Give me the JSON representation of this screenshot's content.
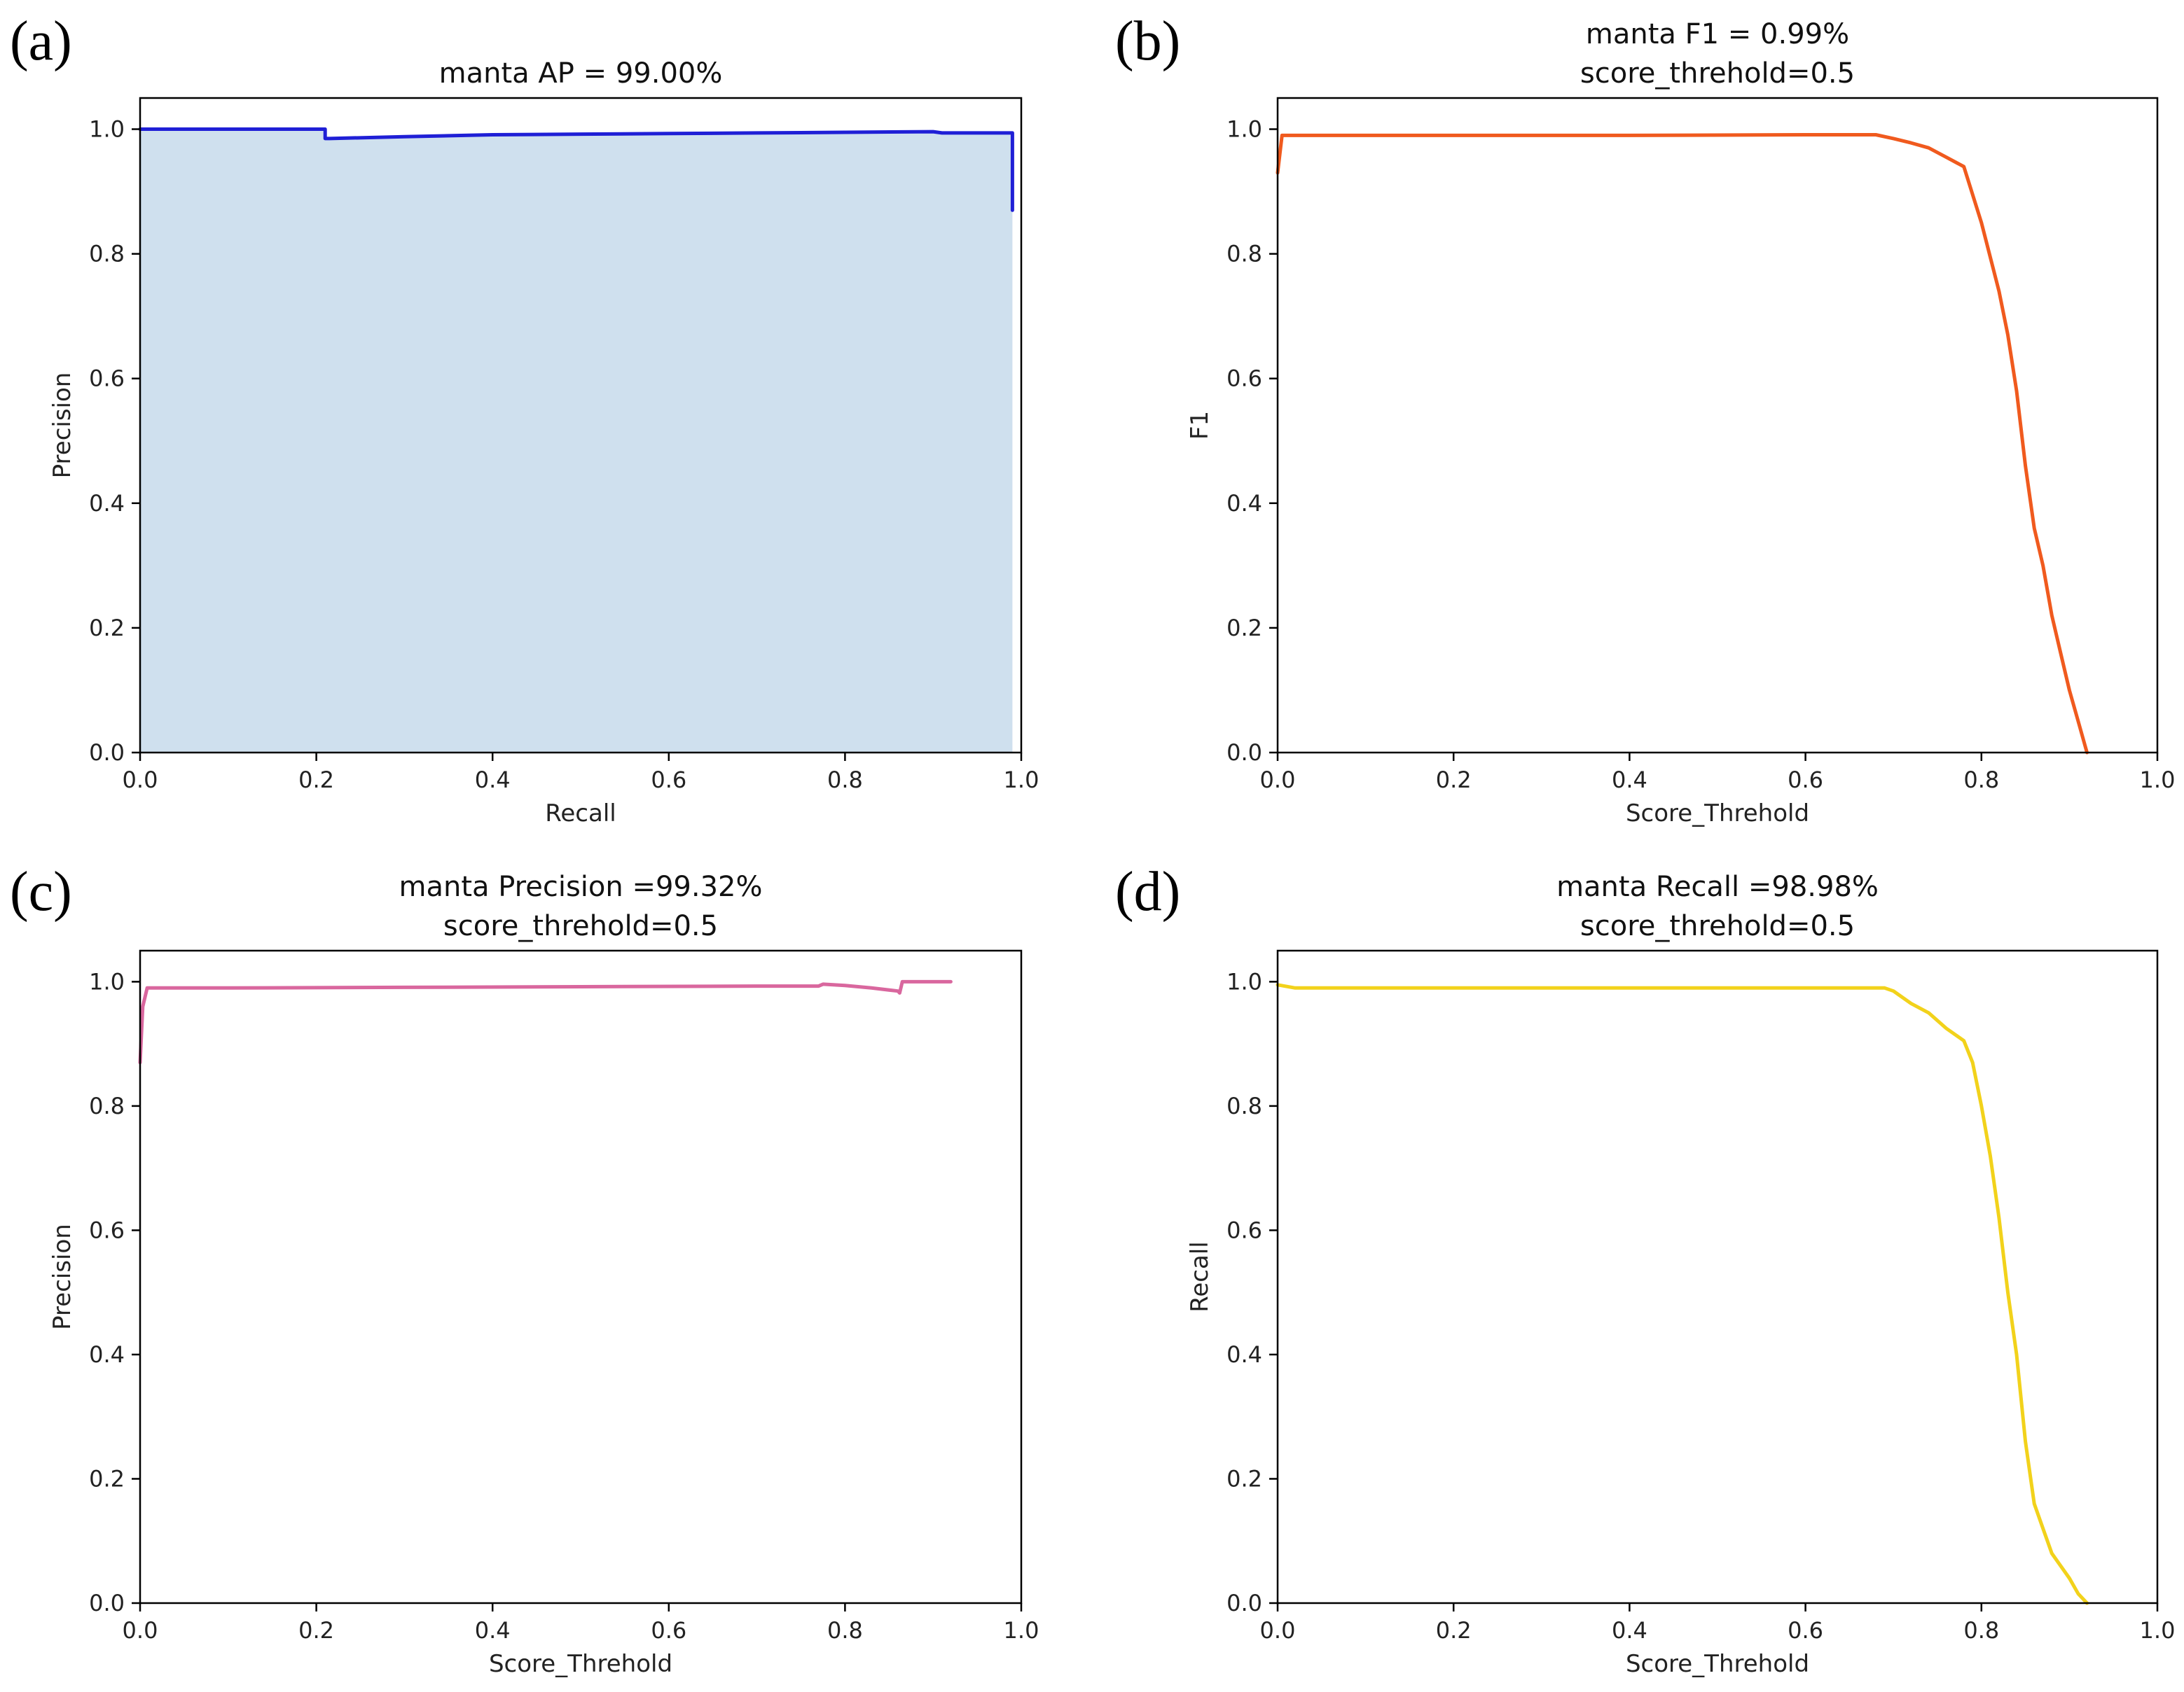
{
  "chart_data": [
    {
      "panel": "(a)",
      "type": "area",
      "title": "manta AP = 99.00%",
      "subtitle": "",
      "xlabel": "Recall",
      "ylabel": "Precision",
      "xlim": [
        0,
        1
      ],
      "ylim": [
        0,
        1.05
      ],
      "xticks": [
        "0.0",
        "0.2",
        "0.4",
        "0.6",
        "0.8",
        "1.0"
      ],
      "yticks": [
        "0.0",
        "0.2",
        "0.4",
        "0.6",
        "0.8",
        "1.0"
      ],
      "grid": false,
      "color": "#1f1fd6",
      "fill_color": "#cfe0ee",
      "series": [
        {
          "name": "precision-recall",
          "x": [
            0.0,
            0.21,
            0.21,
            0.215,
            0.3,
            0.4,
            0.5,
            0.6,
            0.7,
            0.8,
            0.9,
            0.91,
            0.99,
            0.99
          ],
          "y": [
            1.0,
            1.0,
            0.985,
            0.985,
            0.988,
            0.991,
            0.992,
            0.993,
            0.994,
            0.995,
            0.996,
            0.994,
            0.994,
            0.87
          ]
        }
      ]
    },
    {
      "panel": "(b)",
      "type": "line",
      "title": "manta F1 = 0.99%",
      "subtitle": "score_threhold=0.5",
      "xlabel": "Score_Threhold",
      "ylabel": "F1",
      "xlim": [
        0,
        1
      ],
      "ylim": [
        0,
        1.05
      ],
      "xticks": [
        "0.0",
        "0.2",
        "0.4",
        "0.6",
        "0.8",
        "1.0"
      ],
      "yticks": [
        "0.0",
        "0.2",
        "0.4",
        "0.6",
        "0.8",
        "1.0"
      ],
      "grid": false,
      "color": "#f05a1e",
      "series": [
        {
          "name": "F1",
          "x": [
            0.0,
            0.005,
            0.02,
            0.2,
            0.4,
            0.6,
            0.68,
            0.7,
            0.72,
            0.74,
            0.76,
            0.78,
            0.8,
            0.82,
            0.83,
            0.84,
            0.85,
            0.86,
            0.87,
            0.88,
            0.89,
            0.9,
            0.91,
            0.92
          ],
          "y": [
            0.93,
            0.99,
            0.99,
            0.99,
            0.99,
            0.991,
            0.991,
            0.985,
            0.978,
            0.97,
            0.955,
            0.94,
            0.85,
            0.74,
            0.67,
            0.58,
            0.46,
            0.36,
            0.3,
            0.22,
            0.16,
            0.1,
            0.05,
            0.0
          ]
        }
      ]
    },
    {
      "panel": "(c)",
      "type": "line",
      "title": "manta Precision =99.32%",
      "subtitle": "score_threhold=0.5",
      "xlabel": "Score_Threhold",
      "ylabel": "Precision",
      "xlim": [
        0,
        1
      ],
      "ylim": [
        0,
        1.05
      ],
      "xticks": [
        "0.0",
        "0.2",
        "0.4",
        "0.6",
        "0.8",
        "1.0"
      ],
      "yticks": [
        "0.0",
        "0.2",
        "0.4",
        "0.6",
        "0.8",
        "1.0"
      ],
      "grid": false,
      "color": "#d9679e",
      "series": [
        {
          "name": "precision",
          "x": [
            0.0,
            0.003,
            0.008,
            0.1,
            0.3,
            0.5,
            0.7,
            0.77,
            0.775,
            0.8,
            0.83,
            0.86,
            0.862,
            0.865,
            0.9,
            0.92
          ],
          "y": [
            0.87,
            0.96,
            0.99,
            0.99,
            0.991,
            0.992,
            0.993,
            0.993,
            0.996,
            0.994,
            0.99,
            0.985,
            0.982,
            1.0,
            1.0,
            1.0
          ]
        }
      ]
    },
    {
      "panel": "(d)",
      "type": "line",
      "title": "manta Recall =98.98%",
      "subtitle": "score_threhold=0.5",
      "xlabel": "Score_Threhold",
      "ylabel": "Recall",
      "xlim": [
        0,
        1
      ],
      "ylim": [
        0,
        1.05
      ],
      "xticks": [
        "0.0",
        "0.2",
        "0.4",
        "0.6",
        "0.8",
        "1.0"
      ],
      "yticks": [
        "0.0",
        "0.2",
        "0.4",
        "0.6",
        "0.8",
        "1.0"
      ],
      "grid": false,
      "color": "#f2d21b",
      "series": [
        {
          "name": "recall",
          "x": [
            0.0,
            0.02,
            0.2,
            0.4,
            0.6,
            0.69,
            0.7,
            0.72,
            0.74,
            0.76,
            0.78,
            0.79,
            0.8,
            0.81,
            0.82,
            0.83,
            0.84,
            0.85,
            0.86,
            0.87,
            0.88,
            0.89,
            0.9,
            0.91,
            0.92
          ],
          "y": [
            0.995,
            0.99,
            0.99,
            0.99,
            0.99,
            0.99,
            0.985,
            0.965,
            0.95,
            0.925,
            0.905,
            0.87,
            0.8,
            0.72,
            0.62,
            0.5,
            0.4,
            0.26,
            0.16,
            0.12,
            0.08,
            0.06,
            0.04,
            0.015,
            0.0
          ]
        }
      ]
    }
  ]
}
